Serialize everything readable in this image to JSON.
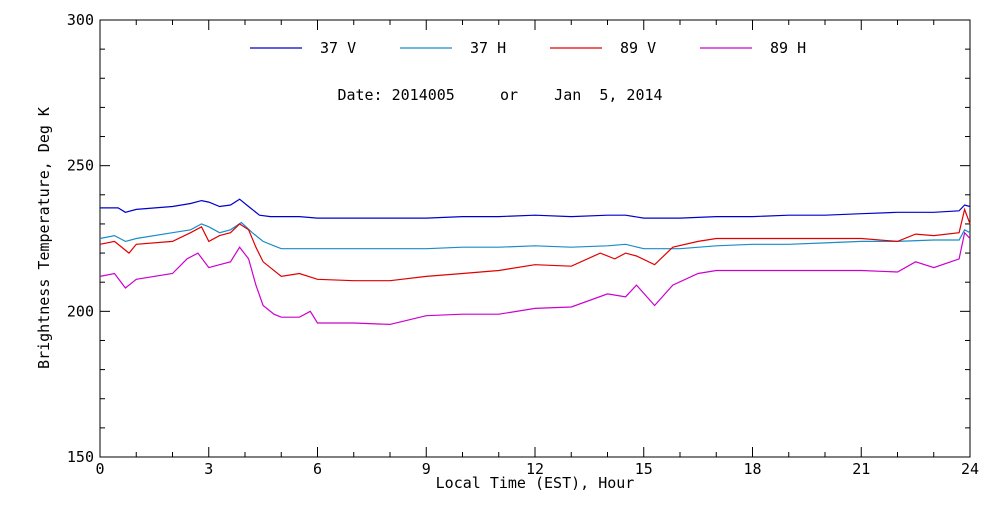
{
  "chart_data": {
    "type": "line",
    "title": "",
    "annotation": "Date: 2014005     or    Jan  5, 2014",
    "xlabel": "Local Time (EST), Hour",
    "ylabel": "Brightness Temperature, Deg K",
    "xlim": [
      0,
      24
    ],
    "ylim": [
      150,
      300
    ],
    "x_ticks": [
      "0",
      "3",
      "6",
      "9",
      "12",
      "15",
      "18",
      "21",
      "24"
    ],
    "y_ticks": [
      "150",
      "200",
      "250",
      "300"
    ],
    "grid": false,
    "legend_position": "top",
    "series": [
      {
        "name": "37 V",
        "color": "#0000cc",
        "x": [
          0,
          0.5,
          0.7,
          1,
          2,
          2.5,
          2.8,
          3,
          3.3,
          3.6,
          3.85,
          4.1,
          4.4,
          4.7,
          5,
          5.5,
          6,
          7,
          8,
          9,
          10,
          11,
          12,
          13,
          14,
          14.5,
          15,
          16,
          17,
          18,
          19,
          20,
          21,
          22,
          23,
          23.7,
          23.85,
          24
        ],
        "y": [
          235.5,
          235.5,
          234,
          235,
          236,
          237,
          238,
          237.5,
          236,
          236.5,
          238.5,
          236,
          233,
          232.5,
          232.5,
          232.5,
          232,
          232,
          232,
          232,
          232.5,
          232.5,
          233,
          232.5,
          233,
          233,
          232,
          232,
          232.5,
          232.5,
          233,
          233,
          233.5,
          234,
          234,
          234.5,
          236.5,
          236
        ]
      },
      {
        "name": "37 H",
        "color": "#1a8cc8",
        "x": [
          0,
          0.4,
          0.7,
          1,
          2,
          2.5,
          2.8,
          3,
          3.3,
          3.6,
          3.9,
          4.2,
          4.5,
          4.8,
          5,
          5.5,
          6,
          7,
          8,
          9,
          10,
          11,
          12,
          13,
          14,
          14.5,
          15,
          16,
          17,
          18,
          19,
          20,
          21,
          22,
          23,
          23.7,
          23.85,
          24
        ],
        "y": [
          225,
          226,
          224,
          225,
          227,
          228,
          230,
          229,
          227,
          228,
          230.5,
          227,
          224,
          222.5,
          221.5,
          221.5,
          221.5,
          221.5,
          221.5,
          221.5,
          222,
          222,
          222.5,
          222,
          222.5,
          223,
          221.5,
          221.5,
          222.5,
          223,
          223,
          223.5,
          224,
          224,
          224.5,
          224.5,
          228,
          227
        ]
      },
      {
        "name": "89 V",
        "color": "#e00000",
        "x": [
          0,
          0.4,
          0.8,
          1,
          2,
          2.5,
          2.8,
          3,
          3.3,
          3.6,
          3.85,
          4.1,
          4.3,
          4.5,
          5,
          5.5,
          6,
          7,
          8,
          9,
          10,
          11,
          12,
          13,
          13.8,
          14.2,
          14.5,
          14.8,
          15.3,
          15.8,
          16.5,
          17,
          18,
          19,
          20,
          21,
          22,
          22.5,
          23,
          23.7,
          23.85,
          24
        ],
        "y": [
          223,
          224,
          220,
          223,
          224,
          227,
          229,
          224,
          226,
          227,
          230,
          228,
          222,
          217,
          212,
          213,
          211,
          210.5,
          210.5,
          212,
          213,
          214,
          216,
          215.5,
          220,
          218,
          220,
          219,
          216,
          222,
          224,
          225,
          225,
          225,
          225,
          225,
          224,
          226.5,
          226,
          227,
          235,
          230
        ]
      },
      {
        "name": "89 H",
        "color": "#cc00cc",
        "x": [
          0,
          0.4,
          0.7,
          1,
          2,
          2.4,
          2.7,
          3,
          3.3,
          3.6,
          3.85,
          4.1,
          4.3,
          4.5,
          4.8,
          5,
          5.5,
          5.8,
          6,
          7,
          8,
          9,
          10,
          11,
          12,
          13,
          14,
          14.5,
          14.8,
          15.3,
          15.8,
          16.5,
          17,
          18,
          19,
          20,
          21,
          22,
          22.5,
          23,
          23.7,
          23.85,
          24
        ],
        "y": [
          212,
          213,
          208,
          211,
          213,
          218,
          220,
          215,
          216,
          217,
          222,
          218,
          209,
          202,
          199,
          198,
          198,
          200,
          196,
          196,
          195.5,
          198.5,
          199,
          199,
          201,
          201.5,
          206,
          205,
          209,
          202,
          209,
          213,
          214,
          214,
          214,
          214,
          214,
          213.5,
          217,
          215,
          218,
          227,
          225
        ]
      }
    ]
  }
}
